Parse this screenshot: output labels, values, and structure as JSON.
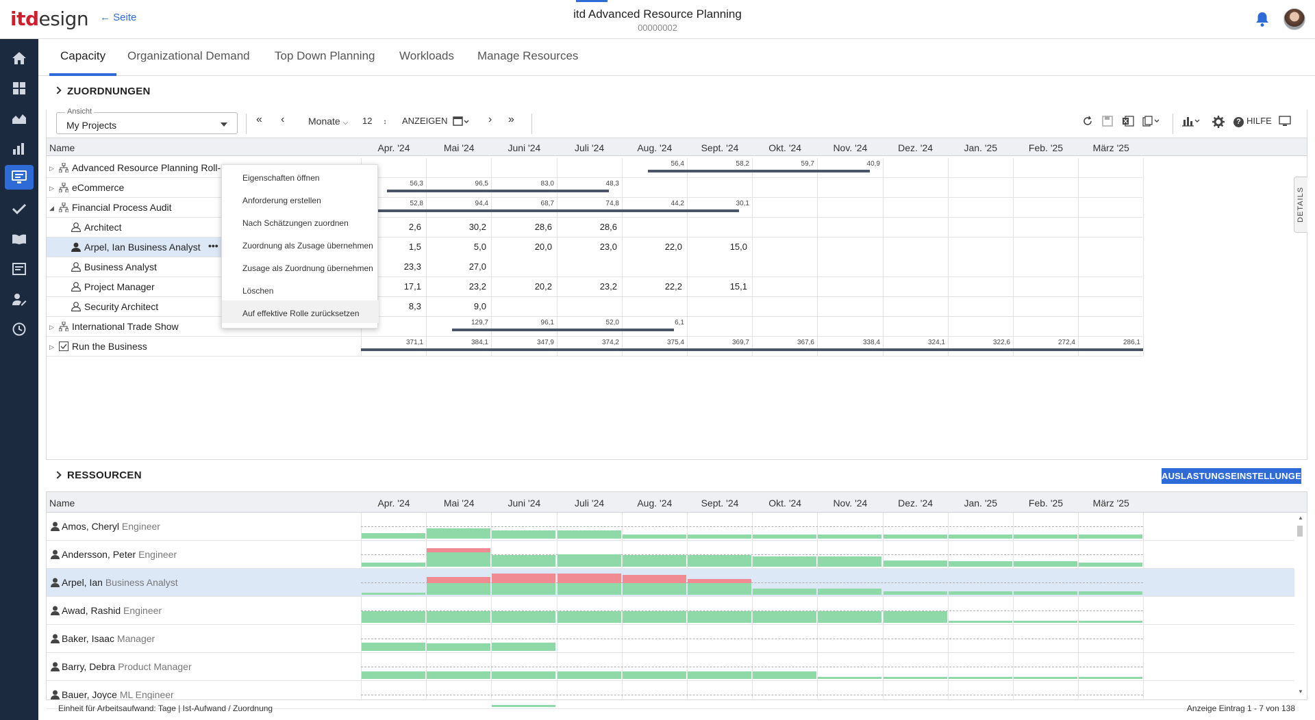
{
  "header": {
    "logo_it": "itd",
    "logo_design": "esign",
    "back_label": "Seite",
    "title": "itd Advanced Resource Planning",
    "subtitle": "00000002"
  },
  "sidebar": {
    "items": [
      "home-icon",
      "dashboard-icon",
      "area-chart-icon",
      "bar-chart-icon",
      "resource-planning-icon",
      "check-icon",
      "book-icon",
      "reports-icon",
      "user-edit-icon",
      "clock-icon"
    ]
  },
  "tabs": [
    "Capacity",
    "Organizational Demand",
    "Top Down Planning",
    "Workloads",
    "Manage Resources"
  ],
  "assignments": {
    "section_title": "ZUORDNUNGEN",
    "view_label": "Ansicht",
    "view_value": "My Projects",
    "period_unit": "Monate",
    "period_count": "12",
    "show_label": "ANZEIGEN",
    "help_label": "HILFE",
    "col_name": "Name",
    "months": [
      "Apr. '24",
      "Mai '24",
      "Juni '24",
      "Juli '24",
      "Aug. '24",
      "Sept. '24",
      "Okt. '24",
      "Nov. '24",
      "Dez. '24",
      "Jan. '25",
      "Feb. '25",
      "März '25"
    ],
    "rows": [
      {
        "label": "Advanced Resource Planning Roll-",
        "type": "project"
      },
      {
        "label": "eCommerce",
        "type": "project"
      },
      {
        "label": "Financial Process Audit",
        "type": "project"
      },
      {
        "label": "Architect",
        "type": "role"
      },
      {
        "label": "Arpel, Ian Business Analyst",
        "type": "person"
      },
      {
        "label": "Business Analyst",
        "type": "role"
      },
      {
        "label": "Project Manager",
        "type": "role"
      },
      {
        "label": "Security Architect",
        "type": "role"
      },
      {
        "label": "International Trade Show",
        "type": "project"
      },
      {
        "label": "Run the Business",
        "type": "program"
      }
    ],
    "small_values": {
      "r0": [
        "",
        "",
        "",
        "",
        "56,4",
        "58,2",
        "59,7",
        "40,9",
        "",
        "",
        "",
        ""
      ],
      "r1": [
        "56,3",
        "96,5",
        "83,0",
        "48,3",
        "",
        "",
        "",
        "",
        "",
        "",
        "",
        ""
      ],
      "r2": [
        "52,8",
        "94,4",
        "68,7",
        "74,8",
        "44,2",
        "30,1",
        "",
        "",
        "",
        "",
        "",
        ""
      ],
      "r8": [
        "",
        "129,7",
        "96,1",
        "52,0",
        "6,1",
        "",
        "",
        "",
        "",
        "",
        "",
        ""
      ],
      "r9": [
        "371,1",
        "384,1",
        "347,9",
        "374,2",
        "375,4",
        "369,7",
        "367,6",
        "338,4",
        "324,1",
        "322,6",
        "272,4",
        "286,1"
      ]
    },
    "cell_values": {
      "r3": [
        "",
        "2,6",
        "30,2",
        "28,6",
        "28,6",
        "",
        ""
      ],
      "r4": [
        "",
        "1,5",
        "5,0",
        "20,0",
        "23,0",
        "22,0",
        "15,0"
      ],
      "r5": [
        "",
        "23,3",
        "27,0",
        "",
        "",
        "",
        ""
      ],
      "r6": [
        "",
        "17,1",
        "23,2",
        "20,2",
        "23,2",
        "22,2",
        "15,1"
      ],
      "r7": [
        "",
        "8,3",
        "9,0",
        "",
        "",
        "",
        ""
      ]
    },
    "details_tab": "DETAILS"
  },
  "context_menu": [
    "Eigenschaften öffnen",
    "Anforderung erstellen",
    "Nach Schätzungen zuordnen",
    "Zuordnung als Zusage übernehmen",
    "Zusage als Zuordnung übernehmen",
    "Löschen",
    "Auf effektive Rolle zurücksetzen"
  ],
  "resources": {
    "section_title": "RESSOURCEN",
    "util_button": "AUSLASTUNGSEINSTELLUNGEN",
    "col_name": "Name",
    "rows": [
      {
        "name": "Amos, Cheryl",
        "role": "Engineer"
      },
      {
        "name": "Andersson, Peter",
        "role": "Engineer"
      },
      {
        "name": "Arpel, Ian",
        "role": "Business Analyst"
      },
      {
        "name": "Awad, Rashid",
        "role": "Engineer"
      },
      {
        "name": "Baker, Isaac",
        "role": "Manager"
      },
      {
        "name": "Barry, Debra",
        "role": "Product Manager"
      },
      {
        "name": "Bauer, Joyce",
        "role": "ML Engineer"
      }
    ]
  },
  "footer": {
    "unit_text": "Einheit für Arbeitsaufwand: Tage | Ist-Aufwand / Zuordnung",
    "count_text": "Anzeige Eintrag 1 - 7 von 138"
  },
  "colors": {
    "accent": "#2e6bd6",
    "sidebar": "#1b2a3f",
    "capacity_ok": "#8fd9a8",
    "over": "#f08a93"
  }
}
